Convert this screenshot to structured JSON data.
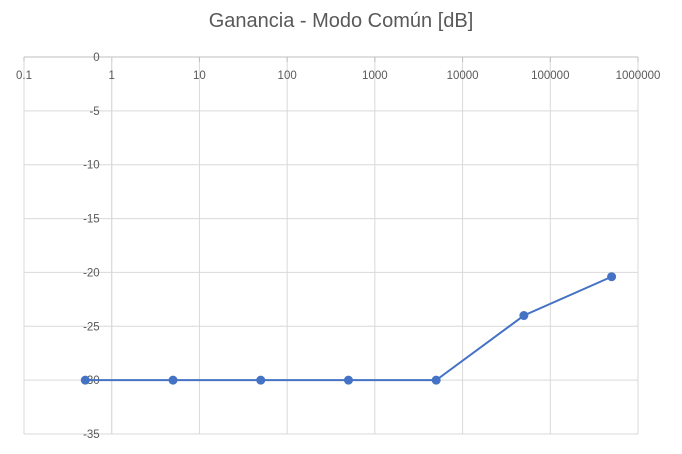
{
  "chart_data": {
    "type": "line",
    "title": "Ganancia - Modo Común [dB]",
    "xlabel": "",
    "ylabel": "",
    "x_scale": "log",
    "xlim": [
      0.1,
      1000000
    ],
    "ylim": [
      -35,
      0
    ],
    "x_ticks": [
      0.1,
      1,
      10,
      100,
      1000,
      10000,
      100000,
      1000000
    ],
    "x_tick_labels": [
      "0.1",
      "1",
      "10",
      "100",
      "1000",
      "10000",
      "100000",
      "1000000"
    ],
    "y_ticks": [
      0,
      -5,
      -10,
      -15,
      -20,
      -25,
      -30,
      -35
    ],
    "y_tick_labels": [
      "0",
      "-5",
      "-10",
      "-15",
      "-20",
      "-25",
      "-30",
      "-35"
    ],
    "grid": true,
    "legend": "none",
    "series": [
      {
        "color": "#4472C4",
        "x": [
          0.5,
          5,
          50,
          500,
          5000,
          50000,
          500000
        ],
        "y": [
          -30,
          -30,
          -30,
          -30,
          -30,
          -24,
          -20.4
        ]
      }
    ]
  }
}
